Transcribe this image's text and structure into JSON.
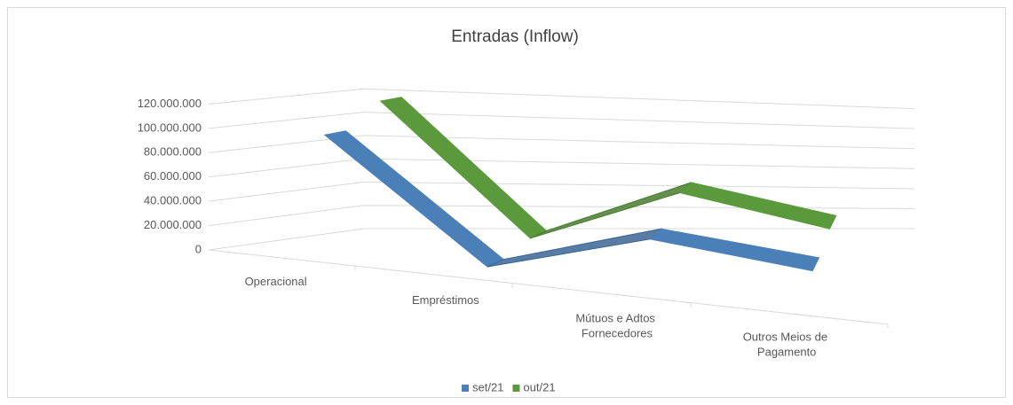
{
  "chart_data": {
    "type": "line3d",
    "title": "Entradas (Inflow)",
    "categories": [
      "Operacional",
      "Empréstimos",
      "Mútuos e Adtos Fornecedores",
      "Outros Meios de Pagamento"
    ],
    "series": [
      {
        "name": "set/21",
        "color": "#4a7fb8",
        "values": [
          100000000,
          0,
          40000000,
          25000000
        ]
      },
      {
        "name": "out/21",
        "color": "#5b9a3c",
        "values": [
          120000000,
          8000000,
          58000000,
          32000000
        ]
      }
    ],
    "ylim": [
      0,
      140000000
    ],
    "yticks": [
      0,
      {
        "value": 20000000,
        "label": "20.000.000"
      },
      {
        "value": 40000000,
        "label": "40.000.000"
      },
      {
        "value": 60000000,
        "label": "60.000.000"
      },
      {
        "value": 80000000,
        "label": "80.000.000"
      },
      {
        "value": 100000000,
        "label": "100.000.000"
      },
      {
        "value": 120000000,
        "label": "120.000.000"
      }
    ],
    "grid": true,
    "legend": "bottom"
  }
}
